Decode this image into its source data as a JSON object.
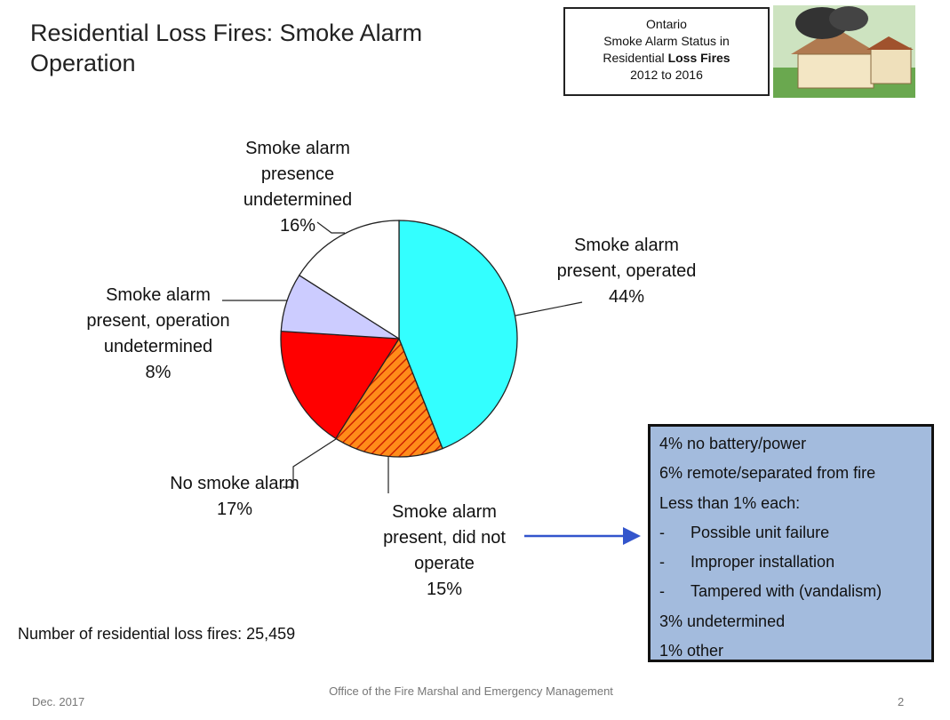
{
  "title": "Residential Loss Fires: Smoke Alarm Operation",
  "info_box": {
    "lines": [
      "Ontario",
      "Smoke Alarm Status in"
    ],
    "line3_plain": "Residential",
    "line3_bold": "Loss Fires",
    "line4": "2012 to 2016"
  },
  "chart_data": {
    "type": "pie",
    "categories": [
      "Smoke alarm present, operated",
      "Smoke alarm present, did not operate",
      "No smoke alarm",
      "Smoke alarm present, operation undetermined",
      "Smoke alarm presence undetermined"
    ],
    "values": [
      44,
      15,
      17,
      8,
      16
    ],
    "value_labels": [
      "44%",
      "15%",
      "17%",
      "8%",
      "16%"
    ],
    "colors": [
      "#33ffff",
      "#ff8c1a",
      "#ff0000",
      "#ccccff",
      "#ffffff"
    ],
    "hatched": [
      false,
      true,
      false,
      false,
      false
    ]
  },
  "detail_box": {
    "items": [
      "4% no battery/power",
      "6% remote/separated from fire",
      "Less than 1% each:"
    ],
    "sub_items": [
      "Possible unit failure",
      "Improper installation",
      "Tampered with (vandalism)"
    ],
    "tail_items": [
      "3% undetermined",
      "1% other"
    ]
  },
  "note": "Number of residential loss fires: 25,459",
  "footer": {
    "date": "Dec. 2017",
    "org": "Office of the Fire Marshal and Emergency Management",
    "page": "2"
  }
}
